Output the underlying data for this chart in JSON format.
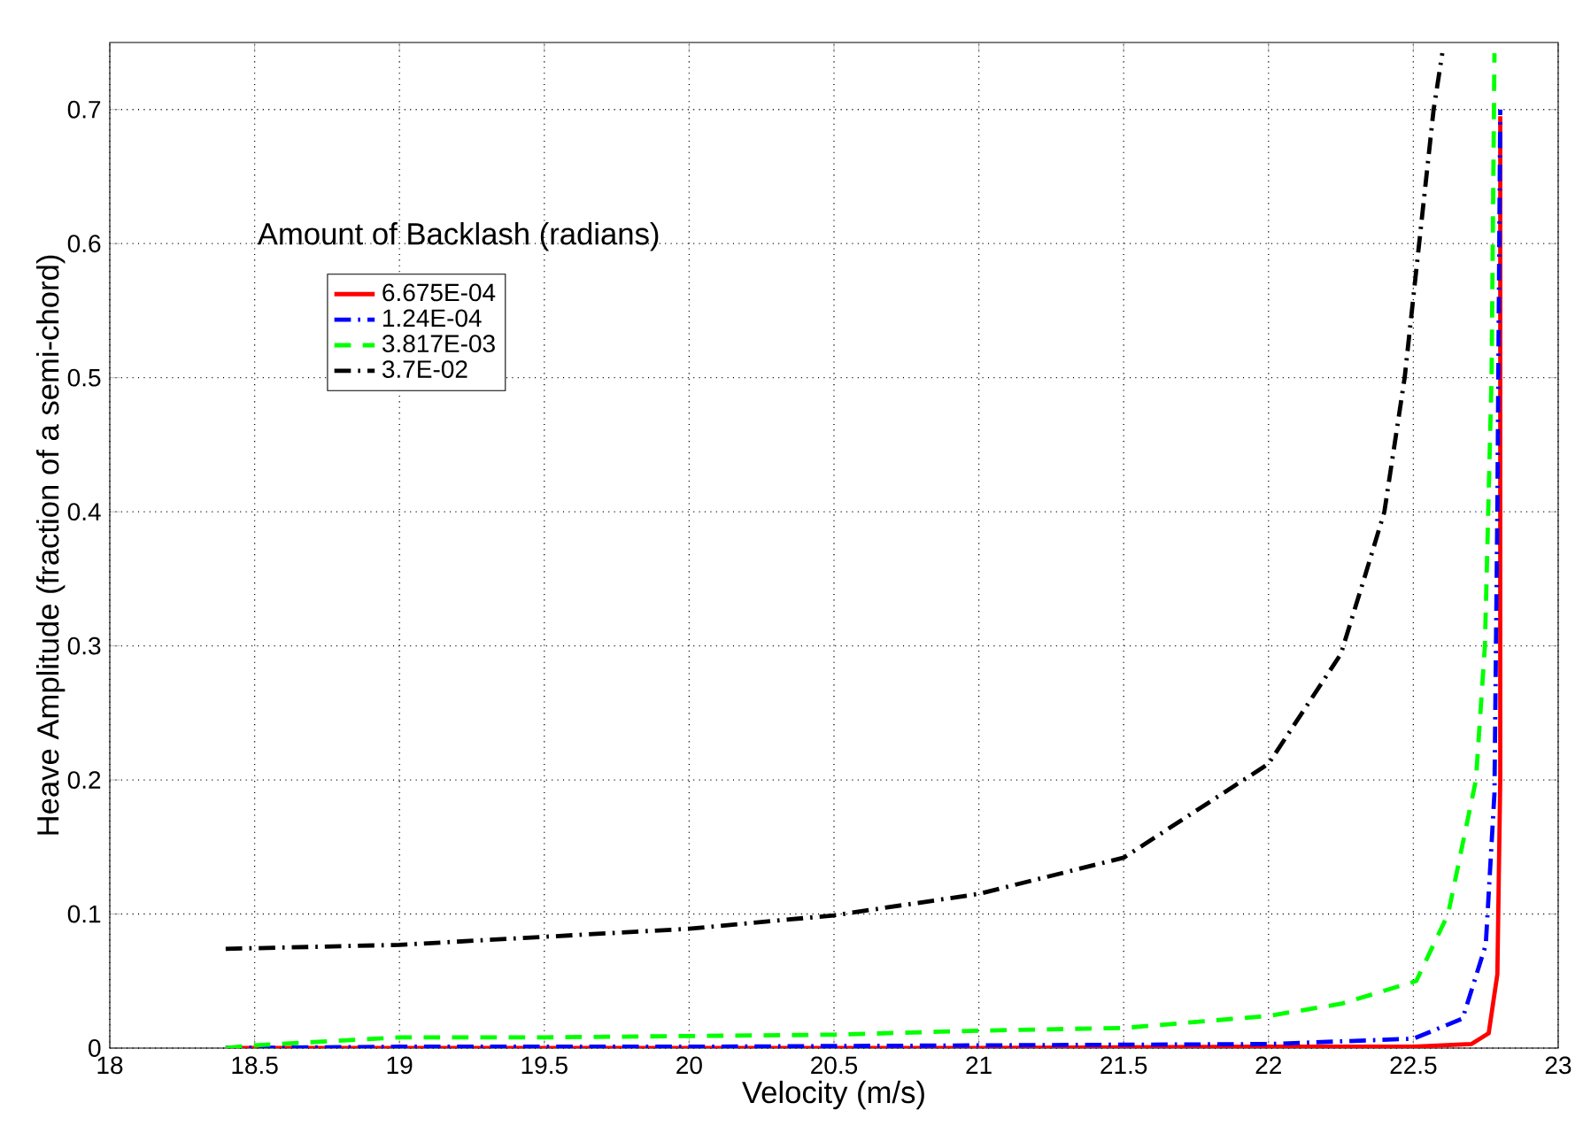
{
  "chart_data": {
    "type": "line",
    "xlabel": "Velocity (m/s)",
    "ylabel": "Heave Amplitude (fraction of a semi-chord)",
    "legend_title": "Amount of Backlash (radians)",
    "xlim": [
      18,
      23
    ],
    "ylim": [
      0,
      0.75
    ],
    "xticks": [
      18,
      18.5,
      19,
      19.5,
      20,
      20.5,
      21,
      21.5,
      22,
      22.5,
      23
    ],
    "yticks": [
      0,
      0.1,
      0.2,
      0.3,
      0.4,
      0.5,
      0.6,
      0.7
    ],
    "grid": true,
    "legend": "top left",
    "series": [
      {
        "name": "6.675E-04",
        "color": "#ff0000",
        "line_style": "solid",
        "x": [
          18.4,
          19,
          20,
          21,
          22,
          22.5,
          22.7,
          22.76,
          22.79,
          22.8,
          22.8
        ],
        "values": [
          0,
          0,
          0,
          0,
          0.001,
          0.001,
          0.003,
          0.011,
          0.055,
          0.2,
          0.695
        ]
      },
      {
        "name": "1.24E-04",
        "color": "#0000ff",
        "line_style": "dashdot",
        "x": [
          18.4,
          19,
          20,
          21,
          22,
          22.5,
          22.67,
          22.75,
          22.78,
          22.79,
          22.8
        ],
        "values": [
          0,
          0.001,
          0.001,
          0.002,
          0.003,
          0.007,
          0.022,
          0.077,
          0.19,
          0.4,
          0.7
        ]
      },
      {
        "name": "3.817E-03",
        "color": "#00ff00",
        "line_style": "dashed",
        "x": [
          18.4,
          18.5,
          18.75,
          19,
          19.5,
          20,
          20.5,
          21,
          21.5,
          22,
          22.25,
          22.51,
          22.62,
          22.716,
          22.747,
          22.77,
          22.78
        ],
        "values": [
          0,
          0.002,
          0.005,
          0.008,
          0.008,
          0.009,
          0.01,
          0.013,
          0.015,
          0.024,
          0.033,
          0.05,
          0.1,
          0.2,
          0.3,
          0.5,
          0.742
        ]
      },
      {
        "name": "3.7E-02",
        "color": "#000000",
        "line_style": "dashdot",
        "x": [
          18.4,
          19,
          19.5,
          20,
          20.5,
          21,
          21.5,
          22,
          22.25,
          22.33,
          22.4,
          22.47,
          22.52,
          22.57,
          22.6
        ],
        "values": [
          0.074,
          0.077,
          0.083,
          0.089,
          0.099,
          0.115,
          0.142,
          0.212,
          0.294,
          0.35,
          0.4,
          0.5,
          0.6,
          0.7,
          0.742
        ]
      }
    ]
  }
}
